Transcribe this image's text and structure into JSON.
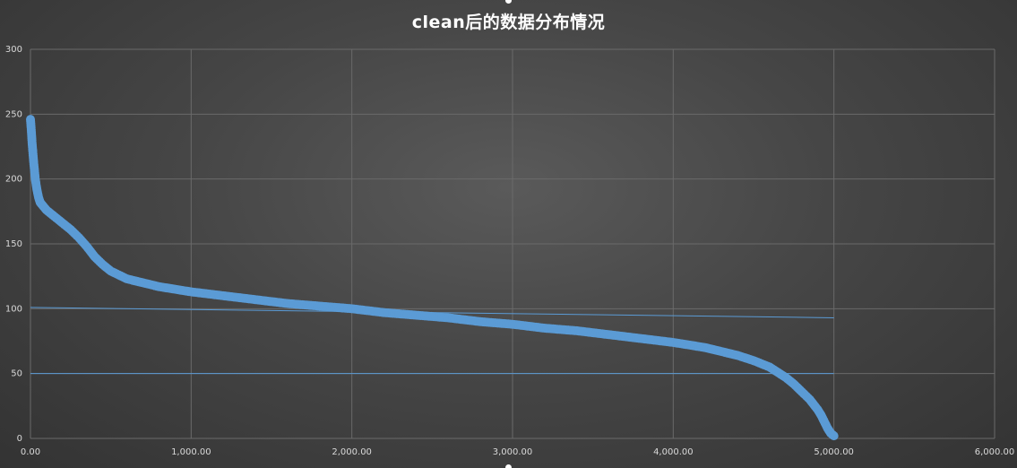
{
  "chart_data": {
    "type": "scatter",
    "title": "clean后的数据分布情况",
    "xlabel": "",
    "ylabel": "",
    "xlim": [
      0,
      6000
    ],
    "ylim": [
      0,
      300
    ],
    "grid": true,
    "x_ticks": [
      0,
      1000,
      2000,
      3000,
      4000,
      5000,
      6000
    ],
    "x_tick_labels": [
      "0.00",
      "1,000.00",
      "2,000.00",
      "3,000.00",
      "4,000.00",
      "5,000.00",
      "6,000.00"
    ],
    "y_ticks": [
      0,
      50,
      100,
      150,
      200,
      250,
      300
    ],
    "y_tick_labels": [
      "0",
      "50",
      "100",
      "150",
      "200",
      "250",
      "300"
    ],
    "marker_color": "#5b9bd5",
    "series": [
      {
        "x": [
          0,
          5,
          10,
          20,
          30,
          40,
          50,
          60,
          80,
          100,
          150,
          200,
          250,
          300,
          350,
          400,
          450,
          500,
          550,
          600,
          700,
          800,
          900,
          1000,
          1200,
          1400,
          1600,
          1800,
          2000,
          2200,
          2400,
          2600,
          2800,
          3000,
          3200,
          3400,
          3600,
          3800,
          4000,
          4200,
          4300,
          4400,
          4500,
          4600,
          4650,
          4700,
          4750,
          4800,
          4850,
          4900,
          4920,
          4940,
          4960,
          4970,
          4980,
          4990,
          5000
        ],
        "y": [
          246,
          238,
          228,
          213,
          200,
          192,
          186,
          182,
          179,
          176,
          171,
          166,
          161,
          155,
          148,
          140,
          134,
          129,
          126,
          123,
          120,
          117,
          115,
          113,
          110,
          107,
          104,
          102,
          100,
          97,
          95,
          93,
          90,
          88,
          85,
          83,
          80,
          77,
          74,
          70,
          67,
          64,
          60,
          55,
          51,
          47,
          42,
          36,
          30,
          22,
          18,
          13,
          8,
          6,
          4,
          3,
          2
        ]
      }
    ],
    "reference_lines": [
      {
        "x": [
          0,
          5000
        ],
        "y": [
          101,
          93
        ]
      },
      {
        "x": [
          0,
          5000
        ],
        "y": [
          50,
          50
        ]
      }
    ]
  }
}
